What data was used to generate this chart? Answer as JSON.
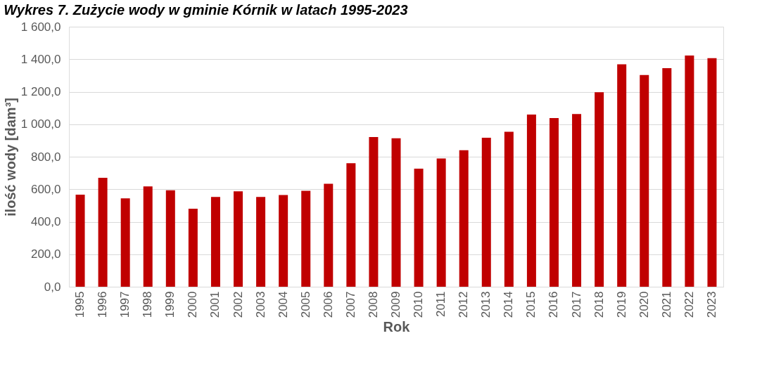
{
  "chart_data": {
    "type": "bar",
    "title": "Wykres 7. Zużycie wody w gminie Kórnik w latach 1995-2023",
    "xlabel": "Rok",
    "ylabel": "ilość wody [dam³]",
    "categories": [
      "1995",
      "1996",
      "1997",
      "1998",
      "1999",
      "2000",
      "2001",
      "2002",
      "2003",
      "2004",
      "2005",
      "2006",
      "2007",
      "2008",
      "2009",
      "2010",
      "2011",
      "2012",
      "2013",
      "2014",
      "2015",
      "2016",
      "2017",
      "2018",
      "2019",
      "2020",
      "2021",
      "2022",
      "2023"
    ],
    "values": [
      567,
      670,
      544,
      617,
      594,
      480,
      552,
      587,
      552,
      564,
      590,
      633,
      760,
      921,
      914,
      726,
      789,
      840,
      917,
      953,
      1059,
      1038,
      1063,
      1197,
      1369,
      1303,
      1345,
      1423,
      1406
    ],
    "color": "#c00000",
    "ylim": [
      0,
      1600
    ],
    "yticks": [
      {
        "value": 0,
        "label": "0,0"
      },
      {
        "value": 200,
        "label": "200,0"
      },
      {
        "value": 400,
        "label": "400,0"
      },
      {
        "value": 600,
        "label": "600,0"
      },
      {
        "value": 800,
        "label": "800,0"
      },
      {
        "value": 1000,
        "label": "1 000,0"
      },
      {
        "value": 1200,
        "label": "1 200,0"
      },
      {
        "value": 1400,
        "label": "1 400,0"
      },
      {
        "value": 1600,
        "label": "1 600,0"
      }
    ],
    "grid": "y"
  }
}
